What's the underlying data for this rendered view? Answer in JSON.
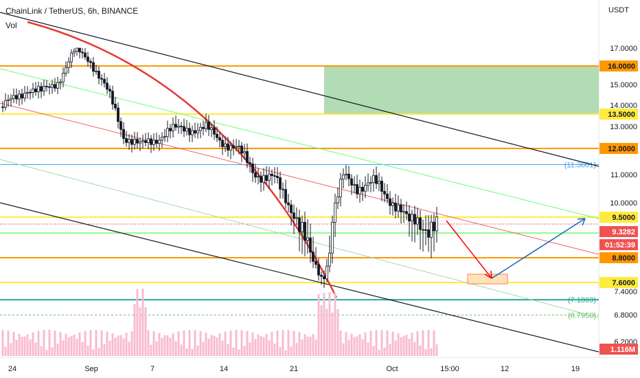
{
  "header": {
    "symbol": "ChainLink / TetherUS, 6h, BINANCE",
    "volume_label": "Vol"
  },
  "chart_data": {
    "type": "candlestick",
    "currency": "USDT",
    "y_ticks": [
      "17.0000",
      "15.0000",
      "14.0000",
      "13.0000",
      "11.0000",
      "10.0000",
      "7.4000",
      "6.8000",
      "6.2000"
    ],
    "x_ticks": [
      "24",
      "Sep",
      "7",
      "14",
      "21",
      "Oct",
      "15:00",
      "12",
      "19"
    ],
    "price_levels": [
      {
        "label": "16.0000",
        "value": 16.0,
        "color": "#ff9800"
      },
      {
        "label": "13.5000",
        "value": 13.5,
        "color": "#ffeb3b"
      },
      {
        "label": "12.0000",
        "value": 12.0,
        "color": "#ff9800"
      },
      {
        "label": "9.5000",
        "value": 9.5,
        "color": "#ffeb3b"
      },
      {
        "label": "8.8000",
        "value": 8.8,
        "color": "#ff9800"
      },
      {
        "label": "7.6000",
        "value": 7.6,
        "color": "#ffeb3b"
      }
    ],
    "fib_labels": [
      {
        "label": "(11.3801)",
        "value": 11.3801,
        "color": "#42a5f5"
      },
      {
        "label": "(7.1869)",
        "value": 7.1869,
        "color": "#26a69a"
      },
      {
        "label": "(6.7950)",
        "value": 6.795,
        "color": "#66bb6a"
      }
    ],
    "last_price": {
      "label": "9.3282",
      "value": 9.3282,
      "color": "#ef5350"
    },
    "countdown": "01:52:39",
    "volume_badge": "1.116M",
    "target_zone": {
      "top": 16.0,
      "bottom": 13.5,
      "color": "#a5d6a7"
    },
    "colors": {
      "up": "#131722",
      "down": "#131722",
      "volume": "#f8bbd0",
      "arrow_down": "#ff0000",
      "arrow_up": "#1565c0"
    }
  }
}
